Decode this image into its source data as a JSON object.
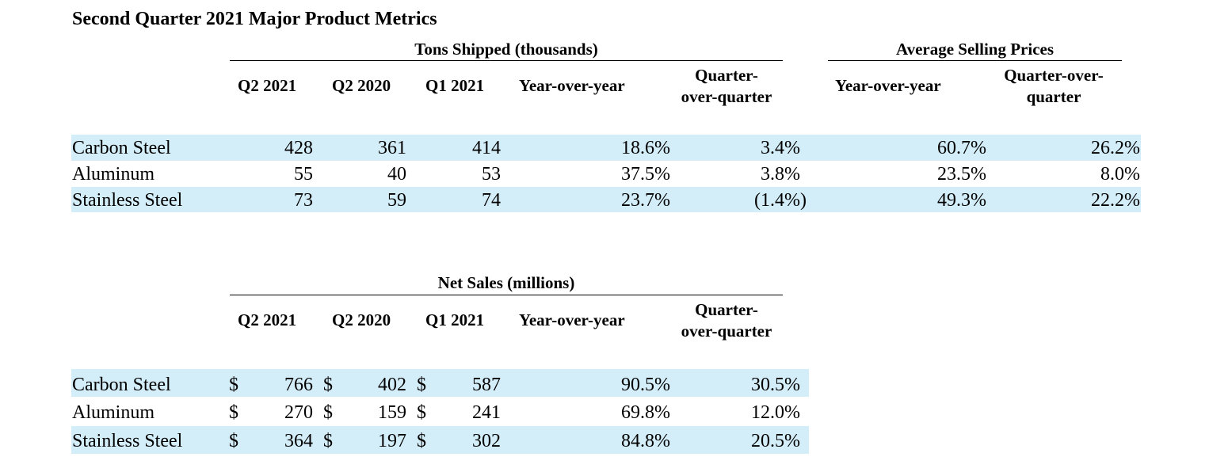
{
  "title": "Second Quarter 2021 Major Product Metrics",
  "tons": {
    "group_header": "Tons Shipped (thousands)",
    "columns": [
      "Q2 2021",
      "Q2 2020",
      "Q1 2021",
      "Year-over-year",
      "Quarter-",
      "over-quarter"
    ],
    "rows": [
      {
        "label": "Carbon Steel",
        "q2_2021": "428",
        "q2_2020": "361",
        "q1_2021": "414",
        "yoy": "18.6%",
        "qoq": "3.4%"
      },
      {
        "label": "Aluminum",
        "q2_2021": "55",
        "q2_2020": "40",
        "q1_2021": "53",
        "yoy": "37.5%",
        "qoq": "3.8%"
      },
      {
        "label": "Stainless Steel",
        "q2_2021": "73",
        "q2_2020": "59",
        "q1_2021": "74",
        "yoy": "23.7%",
        "qoq": "(1.4%)"
      }
    ]
  },
  "asp": {
    "group_header": "Average Selling Prices",
    "columns": [
      "Year-over-year",
      "Quarter-over-",
      "quarter"
    ],
    "rows": [
      {
        "yoy": "60.7%",
        "qoq": "26.2%"
      },
      {
        "yoy": "23.5%",
        "qoq": "8.0%"
      },
      {
        "yoy": "49.3%",
        "qoq": "22.2%"
      }
    ]
  },
  "net_sales": {
    "group_header": "Net Sales (millions)",
    "columns": [
      "Q2 2021",
      "Q2 2020",
      "Q1 2021",
      "Year-over-year",
      "Quarter-",
      "over-quarter"
    ],
    "currency": "$",
    "rows": [
      {
        "label": "Carbon Steel",
        "q2_2021": "766",
        "q2_2020": "402",
        "q1_2021": "587",
        "yoy": "90.5%",
        "qoq": "30.5%"
      },
      {
        "label": "Aluminum",
        "q2_2021": "270",
        "q2_2020": "159",
        "q1_2021": "241",
        "yoy": "69.8%",
        "qoq": "12.0%"
      },
      {
        "label": "Stainless Steel",
        "q2_2021": "364",
        "q2_2020": "197",
        "q1_2021": "302",
        "yoy": "84.8%",
        "qoq": "20.5%"
      }
    ]
  },
  "colors": {
    "row_band": "#d4eef9"
  }
}
